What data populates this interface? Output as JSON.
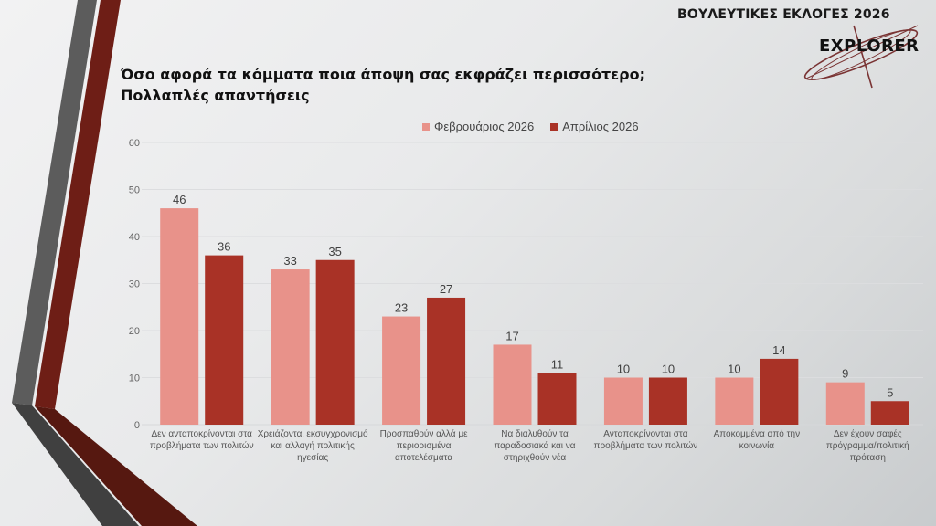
{
  "header": {
    "title": "ΒΟΥΛΕΥΤΙΚΕΣ ΕΚΛΟΓΕΣ 2026",
    "logo_text": "EXPLORER"
  },
  "question": {
    "line1": "Όσο αφορά τα κόμματα ποια άποψη σας εκφράζει περισσότερο;",
    "line2": "Πολλαπλές απαντήσεις"
  },
  "colors": {
    "series1": "#e8928a",
    "series2": "#a93226",
    "stripe_gray": "#5a5a5a",
    "stripe_red": "#6e1e16"
  },
  "chart_data": {
    "type": "bar",
    "title": "Όσο αφορά τα κόμματα ποια άποψη σας εκφράζει περισσότερο; Πολλαπλές απαντήσεις",
    "xlabel": "",
    "ylabel": "",
    "ylim": [
      0,
      60
    ],
    "yticks": [
      0,
      10,
      20,
      30,
      40,
      50,
      60
    ],
    "grid": true,
    "legend_position": "top",
    "categories": [
      [
        "Δεν ανταποκρίνονται στα",
        "προβλήματα των πολιτών"
      ],
      [
        "Χρειάζονται εκσυγχρονισμό",
        "και αλλαγή πολιτικής",
        "ηγεσίας"
      ],
      [
        "Προσπαθούν αλλά με",
        "περιορισμένα αποτελέσματα"
      ],
      [
        "Να διαλυθούν τα",
        "παραδοσιακά και να",
        "στηριχθούν νέα"
      ],
      [
        "Ανταποκρίνονται στα",
        "προβλήματα των πολιτών"
      ],
      [
        "Αποκομμένα από την",
        "κοινωνία"
      ],
      [
        "Δεν έχουν σαφές",
        "πρόγραμμα/πολιτική",
        "πρόταση"
      ]
    ],
    "series": [
      {
        "name": "Φεβρουάριος 2026",
        "values": [
          46,
          33,
          23,
          17,
          10,
          10,
          9
        ]
      },
      {
        "name": "Απρίλιος 2026",
        "values": [
          36,
          35,
          27,
          11,
          10,
          14,
          5
        ]
      }
    ]
  }
}
